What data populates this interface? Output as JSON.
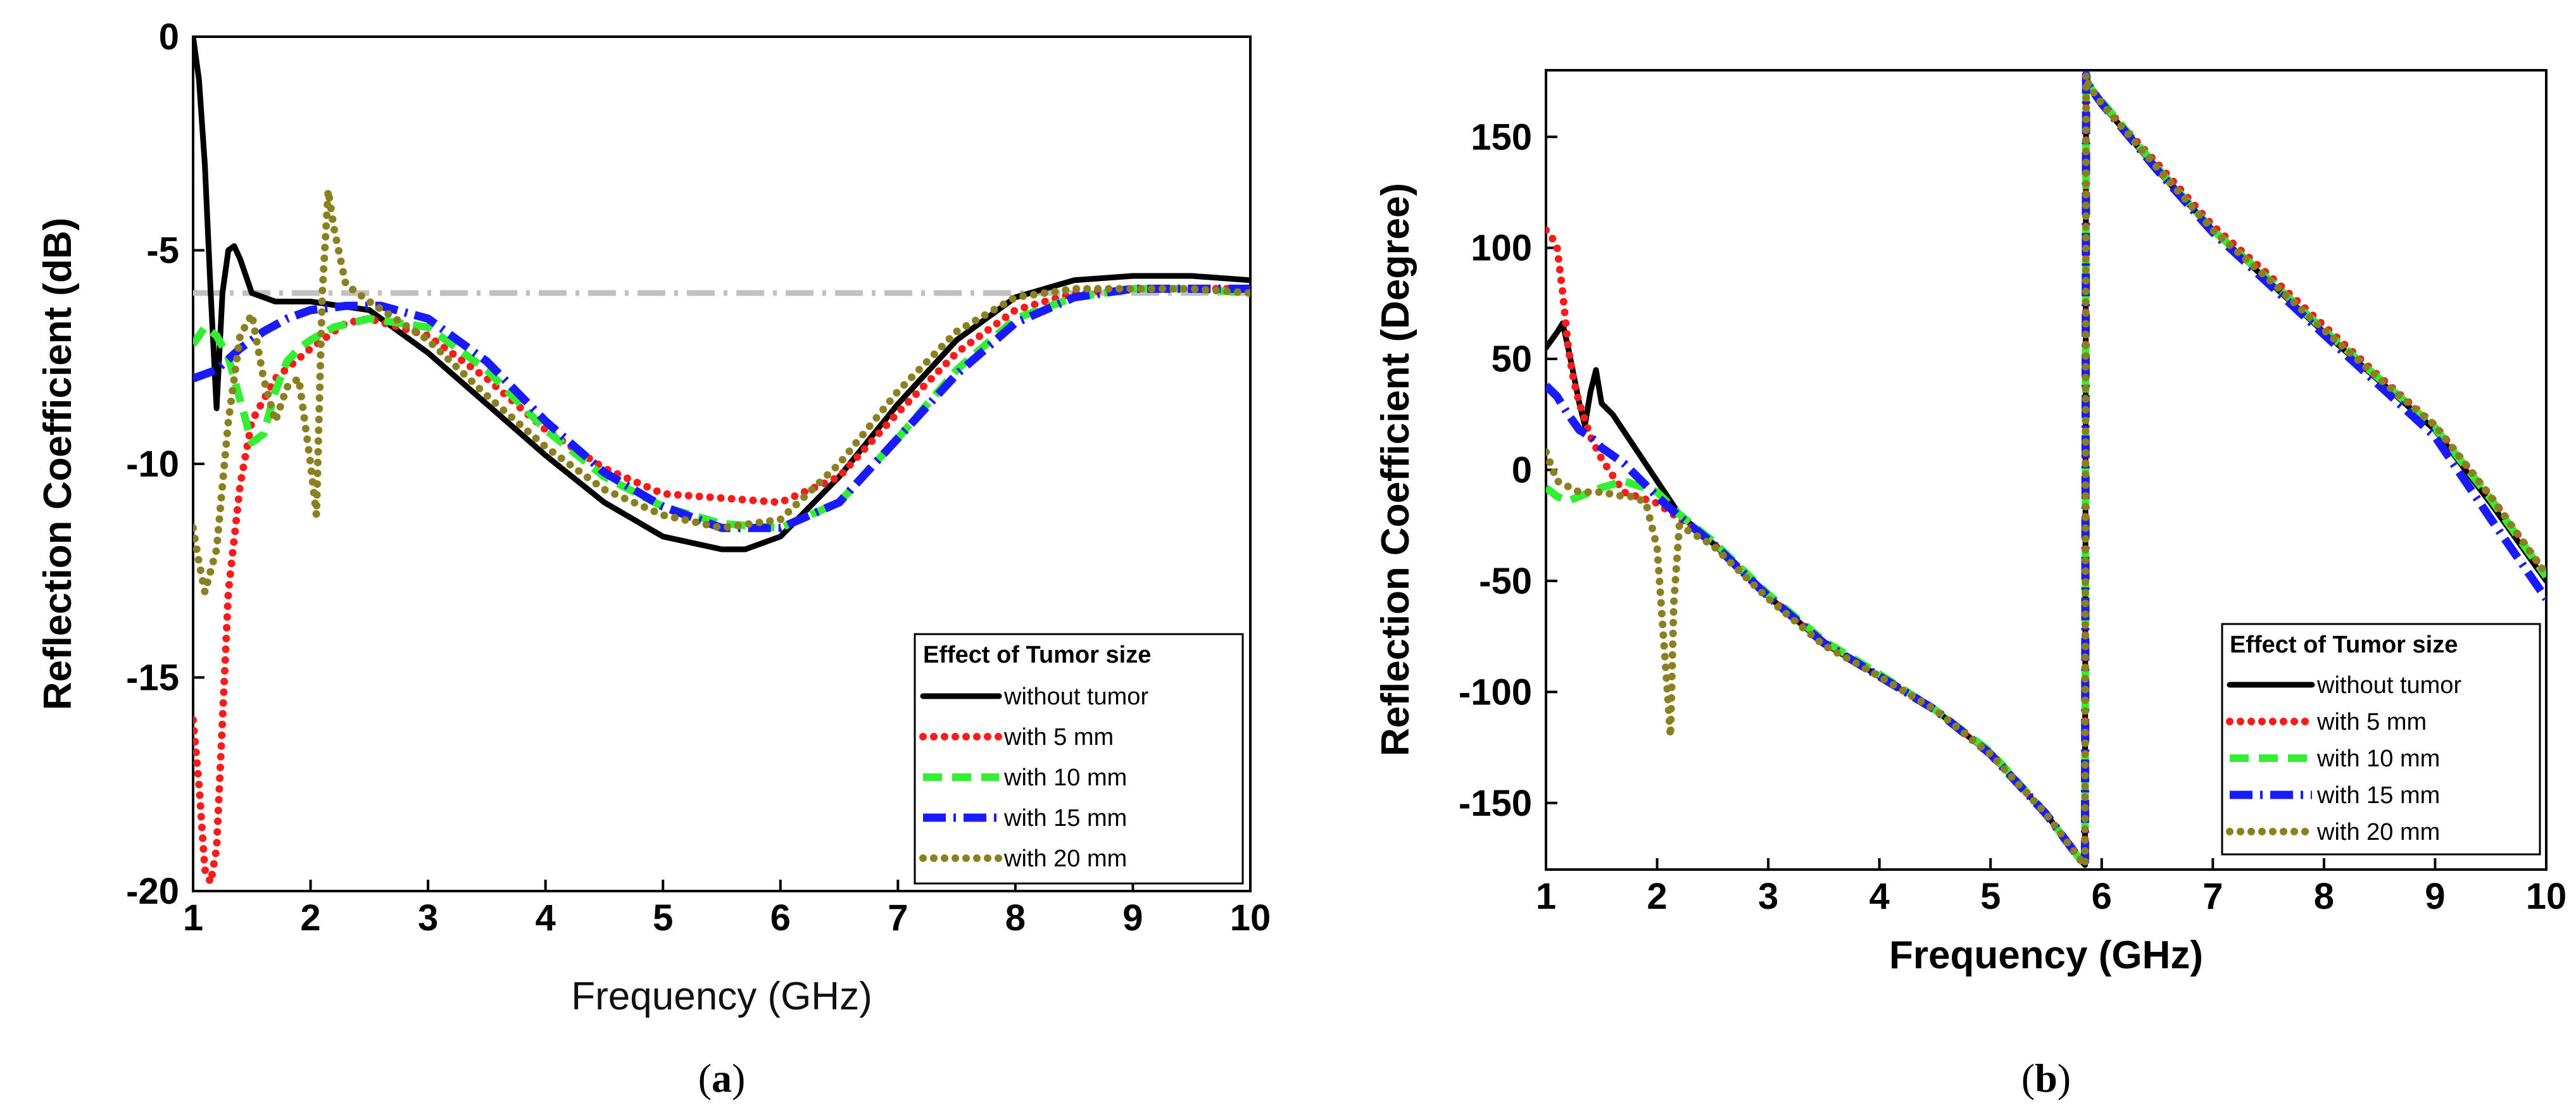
{
  "chart_data": [
    {
      "type": "line",
      "panel": "a",
      "caption": "a",
      "xlabel": "Frequency (GHz)",
      "ylabel": "Reflection Coefficient (dB)",
      "xlim": [
        1,
        10
      ],
      "ylim": [
        -20,
        0
      ],
      "xticks": [
        1,
        2,
        3,
        4,
        5,
        6,
        7,
        8,
        9,
        10
      ],
      "yticks": [
        0,
        -5,
        -10,
        -15,
        -20
      ],
      "legend_title": "Effect of Tumor size",
      "legend_position": "bottom-right",
      "reference_line": {
        "y": -6,
        "color": "#c0c0c0",
        "style": "dash-dot"
      },
      "series": [
        {
          "name": "without tumor",
          "color": "#000000",
          "style": "solid",
          "x": [
            1.0,
            1.05,
            1.1,
            1.15,
            1.2,
            1.25,
            1.3,
            1.35,
            1.4,
            1.5,
            1.7,
            2.0,
            2.5,
            3.0,
            3.5,
            4.0,
            4.5,
            5.0,
            5.5,
            5.7,
            6.0,
            6.5,
            7.0,
            7.5,
            8.0,
            8.5,
            9.0,
            9.5,
            10.0
          ],
          "y": [
            0,
            -1,
            -3,
            -6,
            -8.7,
            -6,
            -5,
            -4.9,
            -5.2,
            -6,
            -6.2,
            -6.2,
            -6.4,
            -7.4,
            -8.6,
            -9.8,
            -10.9,
            -11.7,
            -12.0,
            -12.0,
            -11.7,
            -10.3,
            -8.6,
            -7.1,
            -6.1,
            -5.7,
            -5.6,
            -5.6,
            -5.7
          ]
        },
        {
          "name": "with 5 mm",
          "color": "#ff1a1a",
          "style": "dotted",
          "x": [
            1.0,
            1.05,
            1.1,
            1.15,
            1.2,
            1.25,
            1.3,
            1.4,
            1.5,
            1.7,
            2.0,
            2.3,
            2.5,
            3.0,
            3.5,
            4.0,
            4.5,
            5.0,
            5.5,
            6.0,
            6.5,
            7.0,
            7.5,
            8.0,
            8.5,
            9.0,
            9.5,
            10.0
          ],
          "y": [
            -16,
            -17.5,
            -19.5,
            -19.8,
            -19,
            -16,
            -13,
            -10.5,
            -9,
            -8,
            -7.3,
            -6.7,
            -6.6,
            -7.0,
            -8.0,
            -9.2,
            -10.1,
            -10.7,
            -10.8,
            -10.9,
            -10.3,
            -8.8,
            -7.4,
            -6.4,
            -6.0,
            -5.9,
            -5.9,
            -5.9
          ]
        },
        {
          "name": "with 10 mm",
          "color": "#33ee33",
          "style": "dashed",
          "x": [
            1.0,
            1.1,
            1.2,
            1.3,
            1.4,
            1.5,
            1.6,
            1.7,
            1.8,
            1.9,
            2.0,
            2.2,
            2.5,
            3.0,
            3.5,
            4.0,
            4.5,
            5.0,
            5.5,
            6.0,
            6.5,
            7.0,
            7.5,
            8.0,
            8.5,
            9.0,
            9.5,
            10.0
          ],
          "y": [
            -7.2,
            -6.8,
            -7.0,
            -7.5,
            -8.5,
            -9.5,
            -9.3,
            -8.3,
            -7.6,
            -7.3,
            -7.1,
            -6.8,
            -6.6,
            -6.8,
            -7.8,
            -9.2,
            -10.3,
            -11.0,
            -11.4,
            -11.5,
            -10.9,
            -9.4,
            -7.8,
            -6.6,
            -6.1,
            -5.9,
            -5.9,
            -6.0
          ]
        },
        {
          "name": "with 15 mm",
          "color": "#1a1aff",
          "style": "dash-dot",
          "x": [
            1.0,
            1.2,
            1.4,
            1.6,
            1.8,
            2.0,
            2.3,
            2.6,
            3.0,
            3.5,
            4.0,
            4.5,
            5.0,
            5.5,
            6.0,
            6.5,
            7.0,
            7.5,
            8.0,
            8.5,
            9.0,
            9.5,
            10.0
          ],
          "y": [
            -8.0,
            -7.8,
            -7.3,
            -6.9,
            -6.6,
            -6.4,
            -6.3,
            -6.3,
            -6.6,
            -7.6,
            -9.0,
            -10.2,
            -11.0,
            -11.5,
            -11.5,
            -10.9,
            -9.4,
            -7.9,
            -6.7,
            -6.1,
            -5.9,
            -5.9,
            -5.9
          ]
        },
        {
          "name": "with 20 mm",
          "color": "#8b8020",
          "style": "dotted",
          "x": [
            1.0,
            1.05,
            1.1,
            1.2,
            1.3,
            1.4,
            1.5,
            1.6,
            1.7,
            1.8,
            1.9,
            2.0,
            2.05,
            2.1,
            2.15,
            2.2,
            2.3,
            2.5,
            3.0,
            3.5,
            4.0,
            4.5,
            5.0,
            5.5,
            6.0,
            6.5,
            7.0,
            7.5,
            8.0,
            8.5,
            9.0,
            9.5,
            10.0
          ],
          "y": [
            -11.5,
            -12.3,
            -13,
            -12,
            -9,
            -7,
            -6.5,
            -8,
            -9,
            -8.2,
            -8,
            -10,
            -11.2,
            -6,
            -3.6,
            -4.5,
            -5.8,
            -6.2,
            -7.1,
            -8.4,
            -9.6,
            -10.6,
            -11.2,
            -11.5,
            -11.3,
            -10.0,
            -8.3,
            -6.9,
            -6.1,
            -5.9,
            -5.9,
            -5.9,
            -6.0
          ]
        }
      ]
    },
    {
      "type": "line",
      "panel": "b",
      "caption": "b",
      "xlabel": "Frequency (GHz)",
      "ylabel": "Reflection Coefficient (Degree)",
      "xlim": [
        1,
        10
      ],
      "ylim": [
        -180,
        180
      ],
      "xticks": [
        1,
        2,
        3,
        4,
        5,
        6,
        7,
        8,
        9,
        10
      ],
      "yticks": [
        150,
        100,
        50,
        0,
        -50,
        -100,
        -150
      ],
      "legend_title": "Effect of Tumor size",
      "legend_position": "bottom-right",
      "series": [
        {
          "name": "without tumor",
          "color": "#000000",
          "style": "solid",
          "x": [
            1.0,
            1.1,
            1.15,
            1.2,
            1.3,
            1.35,
            1.4,
            1.45,
            1.5,
            1.6,
            1.8,
            2.0,
            2.2,
            2.5,
            3.0,
            3.5,
            4.0,
            4.5,
            5.0,
            5.5,
            5.8,
            5.85,
            5.86,
            5.87,
            5.9,
            6.0,
            6.5,
            7.0,
            7.5,
            8.0,
            8.5,
            9.0,
            9.5,
            10.0
          ],
          "y": [
            55,
            62,
            66,
            55,
            30,
            20,
            35,
            45,
            30,
            25,
            10,
            -5,
            -20,
            -33,
            -57,
            -78,
            -93,
            -108,
            -128,
            -155,
            -175,
            -178,
            178,
            175,
            172,
            165,
            135,
            108,
            85,
            62,
            40,
            18,
            -15,
            -50
          ]
        },
        {
          "name": "with 5 mm",
          "color": "#ff1a1a",
          "style": "dotted",
          "x": [
            1.0,
            1.05,
            1.1,
            1.15,
            1.2,
            1.25,
            1.3,
            1.4,
            1.5,
            1.7,
            2.0,
            2.2,
            2.5,
            3.0,
            3.5,
            4.0,
            4.5,
            5.0,
            5.5,
            5.8,
            5.85,
            5.86,
            5.87,
            5.9,
            6.0,
            6.5,
            7.0,
            7.5,
            8.0,
            8.5,
            9.0,
            9.5,
            10.0
          ],
          "y": [
            108,
            105,
            100,
            80,
            55,
            40,
            30,
            15,
            5,
            -10,
            -15,
            -22,
            -33,
            -57,
            -78,
            -93,
            -108,
            -128,
            -155,
            -175,
            -178,
            178,
            175,
            172,
            165,
            138,
            110,
            88,
            65,
            42,
            20,
            -12,
            -47
          ]
        },
        {
          "name": "with 10 mm",
          "color": "#33ee33",
          "style": "dashed",
          "x": [
            1.0,
            1.1,
            1.2,
            1.3,
            1.5,
            1.7,
            2.0,
            2.2,
            2.5,
            3.0,
            3.5,
            4.0,
            4.5,
            5.0,
            5.5,
            5.8,
            5.85,
            5.86,
            5.87,
            5.9,
            6.0,
            6.5,
            7.0,
            7.5,
            8.0,
            8.5,
            9.0,
            9.5,
            10.0
          ],
          "y": [
            -8,
            -12,
            -14,
            -12,
            -8,
            -5,
            -10,
            -20,
            -32,
            -56,
            -77,
            -92,
            -108,
            -127,
            -155,
            -175,
            -178,
            178,
            175,
            172,
            166,
            136,
            108,
            86,
            63,
            41,
            19,
            -13,
            -48
          ]
        },
        {
          "name": "with 15 mm",
          "color": "#1a1aff",
          "style": "dash-dot",
          "x": [
            1.0,
            1.1,
            1.2,
            1.3,
            1.4,
            1.5,
            1.7,
            2.0,
            2.2,
            2.5,
            3.0,
            3.5,
            4.0,
            4.5,
            5.0,
            5.5,
            5.8,
            5.85,
            5.86,
            5.87,
            5.9,
            6.0,
            6.5,
            7.0,
            7.5,
            8.0,
            8.5,
            9.0,
            9.5,
            10.0
          ],
          "y": [
            38,
            33,
            25,
            18,
            15,
            10,
            3,
            -12,
            -21,
            -33,
            -57,
            -78,
            -93,
            -108,
            -128,
            -155,
            -175,
            -178,
            178,
            175,
            172,
            165,
            135,
            107,
            84,
            61,
            38,
            15,
            -22,
            -58
          ]
        },
        {
          "name": "with 20 mm",
          "color": "#8b8020",
          "style": "dotted",
          "x": [
            1.0,
            1.1,
            1.3,
            1.5,
            1.7,
            1.8,
            1.9,
            2.0,
            2.05,
            2.1,
            2.12,
            2.15,
            2.2,
            2.3,
            2.5,
            3.0,
            3.5,
            4.0,
            4.5,
            5.0,
            5.5,
            5.8,
            5.85,
            5.86,
            5.87,
            5.9,
            6.0,
            6.5,
            7.0,
            7.5,
            8.0,
            8.5,
            9.0,
            9.5,
            10.0
          ],
          "y": [
            8,
            -5,
            -10,
            -10,
            -12,
            -12,
            -15,
            -35,
            -70,
            -105,
            -120,
            -60,
            -25,
            -28,
            -34,
            -58,
            -79,
            -93,
            -108,
            -128,
            -155,
            -175,
            -178,
            178,
            175,
            172,
            165,
            136,
            108,
            86,
            63,
            41,
            20,
            -12,
            -47
          ]
        }
      ]
    }
  ]
}
